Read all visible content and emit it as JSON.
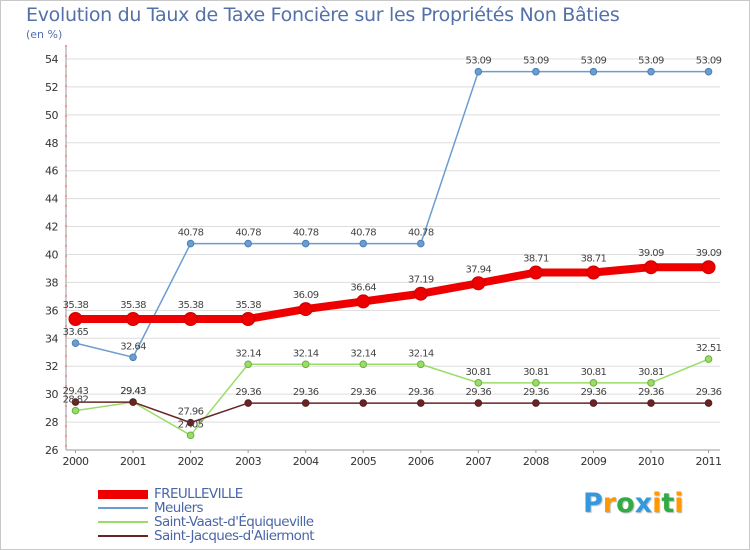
{
  "chart_data": {
    "type": "line",
    "title": "Evolution du Taux de Taxe Foncière sur les Propriétés Non Bâties",
    "subtitle": "(en %)",
    "categories": [
      "2000",
      "2001",
      "2002",
      "2003",
      "2004",
      "2005",
      "2006",
      "2007",
      "2008",
      "2009",
      "2010",
      "2011"
    ],
    "ylim": [
      26,
      55
    ],
    "yticks": [
      26,
      28,
      30,
      32,
      34,
      36,
      38,
      40,
      42,
      44,
      46,
      48,
      50,
      52,
      54
    ],
    "grid": "horizontal",
    "legend_position": "bottom-left",
    "series": [
      {
        "name": "FREULLEVILLE",
        "color": "#ee0000",
        "values": [
          35.38,
          35.38,
          35.38,
          35.38,
          36.09,
          36.64,
          37.19,
          37.94,
          38.71,
          38.71,
          39.09,
          39.09
        ],
        "labels": [
          "35.38",
          "35.38",
          "35.38",
          "35.38",
          "36.09",
          "36.64",
          "37.19",
          "37.94",
          "38.71",
          "38.71",
          "39.09",
          "39.09"
        ]
      },
      {
        "name": "Meulers",
        "color": "#6b9dd0",
        "values": [
          33.65,
          32.64,
          40.78,
          40.78,
          40.78,
          40.78,
          40.78,
          53.09,
          53.09,
          53.09,
          53.09,
          53.09
        ],
        "labels": [
          "33.65",
          "32.64",
          "40.78",
          "40.78",
          "40.78",
          "40.78",
          "40.78",
          "53.09",
          "53.09",
          "53.09",
          "53.09",
          "53.09"
        ]
      },
      {
        "name": "Saint-Vaast-d'Équiqueville",
        "color": "#99dd66",
        "values": [
          28.82,
          29.43,
          27.05,
          32.14,
          32.14,
          32.14,
          32.14,
          30.81,
          30.81,
          30.81,
          30.81,
          32.51
        ],
        "labels": [
          "28.82",
          "29.43",
          "27.05",
          "32.14",
          "32.14",
          "32.14",
          "32.14",
          "30.81",
          "30.81",
          "30.81",
          "30.81",
          "32.51"
        ]
      },
      {
        "name": "Saint-Jacques-d'Aliermont",
        "color": "#6b2424",
        "values": [
          29.43,
          29.43,
          27.96,
          29.36,
          29.36,
          29.36,
          29.36,
          29.36,
          29.36,
          29.36,
          29.36,
          29.36
        ],
        "labels": [
          "29.43",
          "29.43",
          "27.96",
          "29.36",
          "29.36",
          "29.36",
          "29.36",
          "29.36",
          "29.36",
          "29.36",
          "29.36",
          "29.36"
        ]
      }
    ]
  },
  "logo": {
    "letters": [
      {
        "ch": "P",
        "color": "#3399dd"
      },
      {
        "ch": "r",
        "color": "#ff9900"
      },
      {
        "ch": "o",
        "color": "#33aa44"
      },
      {
        "ch": "x",
        "color": "#3399dd"
      },
      {
        "ch": "i",
        "color": "#ff9900"
      },
      {
        "ch": "t",
        "color": "#33aa44"
      },
      {
        "ch": "i",
        "color": "#ff9900"
      }
    ]
  }
}
